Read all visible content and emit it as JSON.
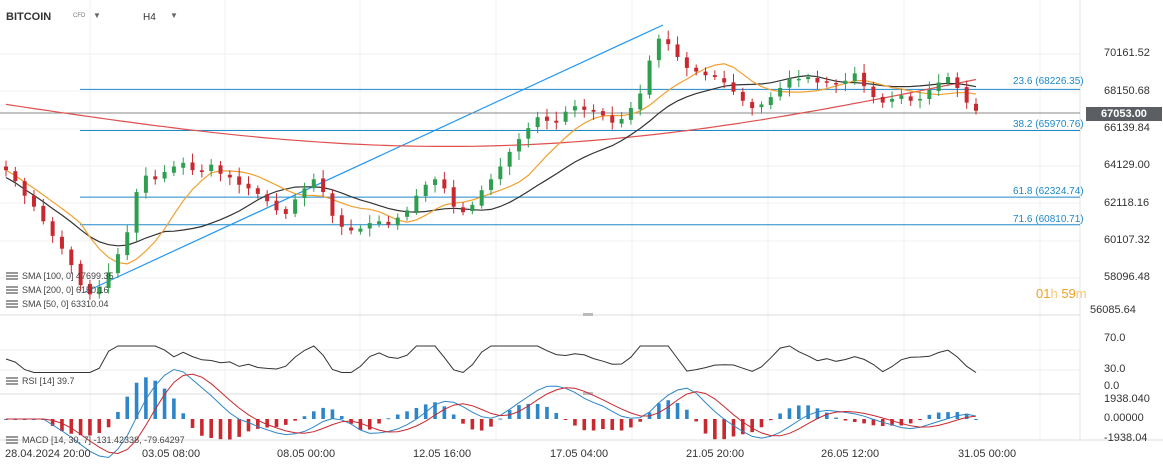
{
  "header": {
    "symbol": "BITCOIN",
    "symbol_type": "CFD",
    "timeframe": "H4"
  },
  "price_axis": {
    "labels": [
      "70161.52",
      "68150.68",
      "66139.84",
      "64129.00",
      "62118.16",
      "60107.32",
      "58096.48",
      "56085.64"
    ],
    "current_price": "67053.00"
  },
  "fibonacci": {
    "levels": [
      {
        "label": "23.6 (68226.35)"
      },
      {
        "label": "38.2 (65970.76)"
      },
      {
        "label": "61.8 (62324.74)"
      },
      {
        "label": "71.6 (60810.71)"
      }
    ]
  },
  "legend": {
    "sma100": "SMA [100, 0] 47699.35",
    "sma200": "SMA [200, 0] 6150.16",
    "sma50": "SMA [50, 0] 63310.04",
    "rsi": "RSI [14] 39.7",
    "macd": "MACD [14, 30, 7] -131.42338, -79.64297"
  },
  "timer": {
    "hours": "01",
    "h": "h",
    "minutes": "59",
    "m": "m"
  },
  "rsi_axis": {
    "labels": [
      "70.0",
      "30.0",
      "0.0"
    ]
  },
  "macd_axis": {
    "labels": [
      "1938.040",
      "0.00000",
      "-1938.04"
    ]
  },
  "time_axis": {
    "labels": [
      "28.04.2024  20:00",
      "03.05  08:00",
      "08.05  00:00",
      "12.05  16:00",
      "17.05  04:00",
      "21.05  20:00",
      "26.05  12:00",
      "31.05  00:00"
    ]
  },
  "colors": {
    "bull": "#2e9e4f",
    "bear": "#c8282f",
    "sma50": "#f0a030",
    "sma100": "#333333",
    "sma200": "#e05050",
    "fib": "#1e88c8",
    "trendline": "#2196f3"
  },
  "chart_data": {
    "type": "candlestick",
    "instrument": "BITCOIN",
    "timeframe": "H4",
    "ylim": [
      56085.64,
      71500
    ],
    "fib_levels": [
      {
        "ratio": 23.6,
        "price": 68226.35
      },
      {
        "ratio": 38.2,
        "price": 65970.76
      },
      {
        "ratio": 61.8,
        "price": 62324.74
      },
      {
        "ratio": 71.6,
        "price": 60810.71
      }
    ],
    "current_price": 67053.0,
    "close_path": [
      63800,
      63200,
      62400,
      61800,
      61000,
      60200,
      59500,
      58600,
      57500,
      57000,
      57400,
      58200,
      59200,
      60400,
      62600,
      63500,
      63300,
      63700,
      64000,
      64200,
      63800,
      63700,
      64100,
      63600,
      63400,
      63000,
      62800,
      62500,
      62100,
      61600,
      61400,
      62200,
      62800,
      63300,
      62600,
      61300,
      60700,
      60500,
      60600,
      60900,
      61000,
      60800,
      61200,
      61600,
      62400,
      63000,
      63300,
      62800,
      61800,
      61500,
      61900,
      62700,
      63300,
      64000,
      64800,
      65500,
      66100,
      66700,
      66500,
      66400,
      67000,
      67300,
      67100,
      67000,
      66800,
      66400,
      66600,
      67200,
      68000,
      69800,
      71000,
      70700,
      70000,
      69400,
      69200,
      69000,
      68900,
      68600,
      68100,
      67600,
      67200,
      67400,
      67800,
      68300,
      68800,
      68800,
      68900,
      68600,
      68600,
      68500,
      68700,
      69100,
      68400,
      67800,
      67500,
      67700,
      67900,
      67600,
      67700,
      68200,
      68600,
      68900,
      68300,
      67500,
      67053
    ],
    "series": [
      {
        "name": "SMA [50, 0]",
        "value": 63310.04
      },
      {
        "name": "SMA [100, 0]",
        "value": 47699.35
      },
      {
        "name": "SMA [200, 0]",
        "value": 6150.16
      }
    ]
  }
}
